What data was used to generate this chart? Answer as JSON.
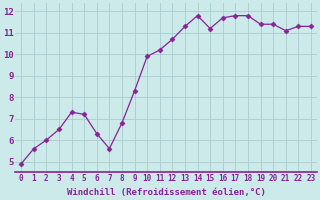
{
  "x": [
    0,
    1,
    2,
    3,
    4,
    5,
    6,
    7,
    8,
    9,
    10,
    11,
    12,
    13,
    14,
    15,
    16,
    17,
    18,
    19,
    20,
    21,
    22,
    23
  ],
  "y": [
    4.9,
    5.6,
    6.0,
    6.5,
    7.3,
    7.2,
    6.3,
    5.6,
    6.8,
    8.3,
    9.9,
    10.2,
    10.7,
    11.3,
    11.8,
    11.2,
    11.7,
    11.8,
    11.8,
    11.4,
    11.4,
    11.1,
    11.3,
    11.3
  ],
  "line_color": "#882299",
  "marker": "D",
  "marker_size": 2.5,
  "bg_color": "#cceaea",
  "grid_color": "#aacccc",
  "xlabel": "Windchill (Refroidissement éolien,°C)",
  "xlabel_fontsize": 6.5,
  "xlabel_color": "#882299",
  "tick_color": "#882299",
  "yticks": [
    5,
    6,
    7,
    8,
    9,
    10,
    11,
    12
  ],
  "xticks": [
    0,
    1,
    2,
    3,
    4,
    5,
    6,
    7,
    8,
    9,
    10,
    11,
    12,
    13,
    14,
    15,
    16,
    17,
    18,
    19,
    20,
    21,
    22,
    23
  ],
  "ylim": [
    4.5,
    12.4
  ],
  "xlim": [
    -0.5,
    23.5
  ],
  "border_color": "#882299",
  "tick_fontsize": 5.5,
  "ytick_fontsize": 6.5
}
